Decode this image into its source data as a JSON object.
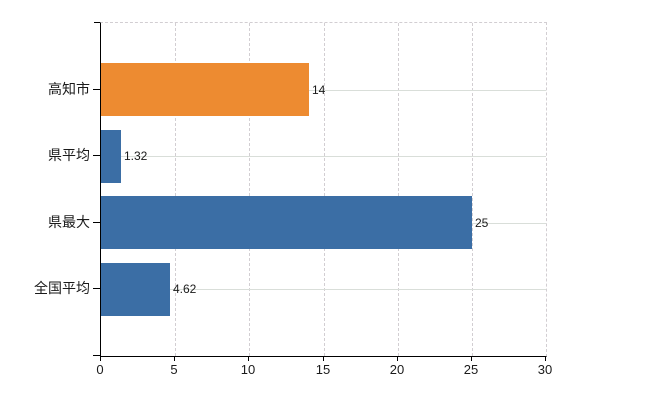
{
  "chart_data": {
    "type": "bar",
    "orientation": "horizontal",
    "categories": [
      "高知市",
      "県平均",
      "県最大",
      "全国平均"
    ],
    "values": [
      14,
      1.32,
      25,
      4.62
    ],
    "value_labels": [
      "14",
      "1.32",
      "25",
      "4.62"
    ],
    "bar_colors": [
      "#ed8b31",
      "#3b6ea5",
      "#3b6ea5",
      "#3b6ea5"
    ],
    "xlim": [
      0,
      30
    ],
    "x_ticks": [
      0,
      5,
      10,
      15,
      20,
      25,
      30
    ],
    "x_tick_labels": [
      "0",
      "5",
      "10",
      "15",
      "20",
      "25",
      "30"
    ],
    "grid": {
      "vertical_style": "dashed",
      "horizontal_style": "solid",
      "on": true
    },
    "legend_position": "none",
    "title": "",
    "xlabel": "",
    "ylabel": "",
    "colors": {
      "highlight_bar": "#ed8b31",
      "default_bar": "#3b6ea5",
      "gridline": "#d6d6d6",
      "axis": "#000000",
      "text": "#1a1a1a",
      "background": "#ffffff"
    }
  }
}
